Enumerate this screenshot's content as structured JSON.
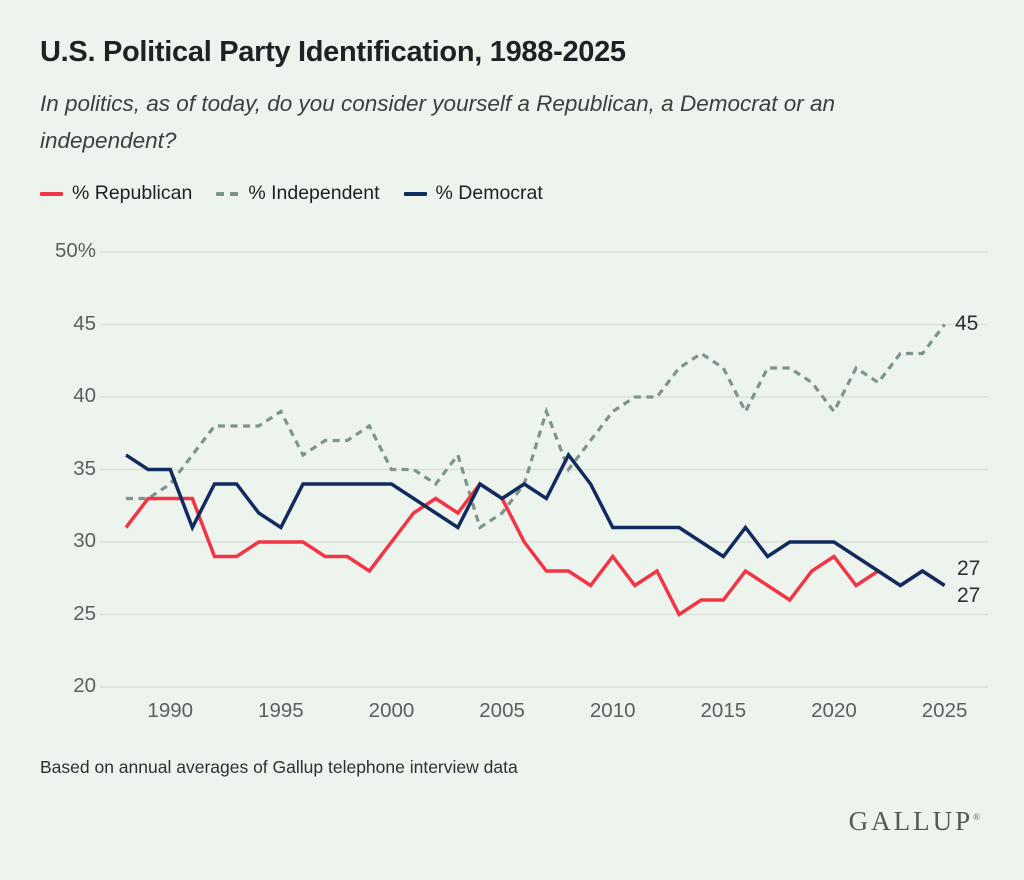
{
  "header": {
    "title": "U.S. Political Party Identification, 1988-2025",
    "subtitle": "In politics, as of today, do you consider yourself a Republican, a Democrat or an independent?"
  },
  "legend": {
    "items": [
      {
        "label": "% Republican",
        "color": "#F23544",
        "style": "solid"
      },
      {
        "label": "% Independent",
        "color": "#7D948D",
        "style": "dashed"
      },
      {
        "label": "% Democrat",
        "color": "#112B5E",
        "style": "solid"
      }
    ]
  },
  "chart_data": {
    "type": "line",
    "title": "U.S. Political Party Identification, 1988-2025",
    "grid": "horizontal",
    "legend_position": "top",
    "ylim": [
      20,
      50
    ],
    "years": [
      1988,
      1989,
      1990,
      1991,
      1992,
      1993,
      1994,
      1995,
      1996,
      1997,
      1998,
      1999,
      2000,
      2001,
      2002,
      2003,
      2004,
      2005,
      2006,
      2007,
      2008,
      2009,
      2010,
      2011,
      2012,
      2013,
      2014,
      2015,
      2016,
      2017,
      2018,
      2019,
      2020,
      2021,
      2022,
      2023,
      2024,
      2025
    ],
    "series": [
      {
        "name": "% Republican",
        "color": "#F23544",
        "dashed": false,
        "values": [
          31,
          33,
          33,
          33,
          29,
          29,
          30,
          30,
          30,
          29,
          29,
          28,
          30,
          32,
          33,
          32,
          34,
          33,
          30,
          28,
          28,
          27,
          29,
          27,
          28,
          25,
          26,
          26,
          28,
          27,
          26,
          28,
          29,
          27,
          28,
          27,
          28,
          27
        ]
      },
      {
        "name": "% Independent",
        "color": "#7D948D",
        "dashed": true,
        "values": [
          33,
          33,
          34,
          36,
          38,
          38,
          38,
          39,
          36,
          37,
          37,
          38,
          35,
          35,
          34,
          36,
          31,
          32,
          34,
          39,
          35,
          37,
          39,
          40,
          40,
          42,
          43,
          42,
          39,
          42,
          42,
          41,
          39,
          42,
          41,
          43,
          43,
          45
        ]
      },
      {
        "name": "% Democrat",
        "color": "#112B5E",
        "dashed": false,
        "values": [
          36,
          35,
          35,
          31,
          34,
          34,
          32,
          31,
          34,
          34,
          34,
          34,
          34,
          33,
          32,
          31,
          34,
          33,
          34,
          33,
          36,
          34,
          31,
          31,
          31,
          31,
          30,
          29,
          31,
          29,
          30,
          30,
          30,
          29,
          28,
          27,
          28,
          27
        ]
      }
    ],
    "y_ticks": [
      {
        "value": 50,
        "label": "50%"
      },
      {
        "value": 45,
        "label": "45"
      },
      {
        "value": 40,
        "label": "40"
      },
      {
        "value": 35,
        "label": "35"
      },
      {
        "value": 30,
        "label": "30"
      },
      {
        "value": 25,
        "label": "25"
      },
      {
        "value": 20,
        "label": "20"
      }
    ],
    "x_ticks": [
      {
        "year": 1990,
        "label": "1990"
      },
      {
        "year": 1995,
        "label": "1995"
      },
      {
        "year": 2000,
        "label": "2000"
      },
      {
        "year": 2005,
        "label": "2005"
      },
      {
        "year": 2010,
        "label": "2010"
      },
      {
        "year": 2015,
        "label": "2015"
      },
      {
        "year": 2020,
        "label": "2020"
      },
      {
        "year": 2025,
        "label": "2025"
      }
    ],
    "end_labels": [
      {
        "text": "45",
        "series": "% Independent"
      },
      {
        "text": "27",
        "series": "% Democrat"
      },
      {
        "text": "27",
        "series": "% Republican"
      }
    ]
  },
  "footer": {
    "source_note": "Based on annual averages of Gallup telephone interview data",
    "logo_text": "GALLUP",
    "logo_mark": "®"
  },
  "colors": {
    "background": "#EDF3ED",
    "gridline": "#D8DDD6"
  }
}
